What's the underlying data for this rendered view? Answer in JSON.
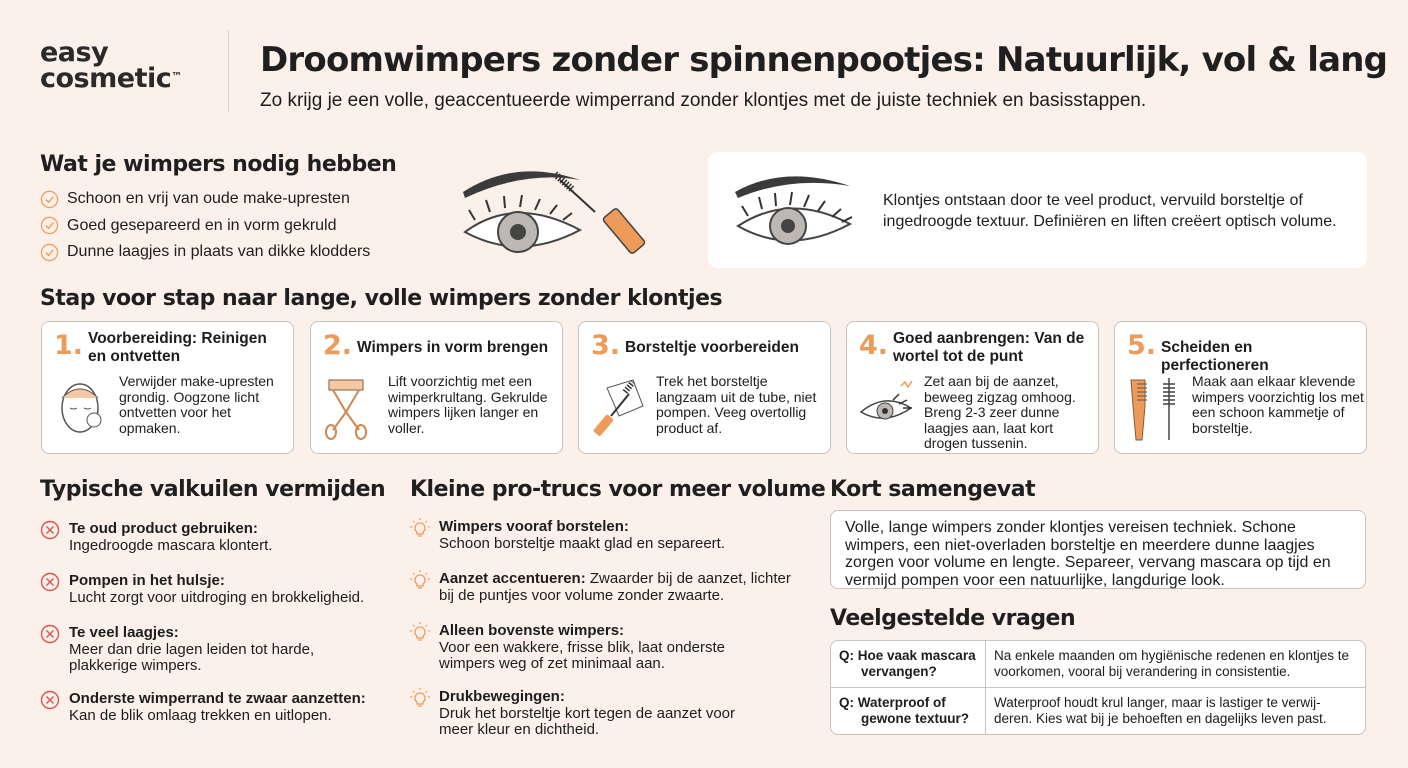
{
  "brand": {
    "line1": "easy",
    "line2": "cosmetic",
    "tm": "™"
  },
  "header": {
    "title": "Droomwimpers zonder spinnenpootjes: Natuurlijk, vol & lang",
    "subtitle": "Zo krijg je een volle, geaccentueerde wimperrand zonder klontjes met de juiste techniek en basisstappen."
  },
  "needs": {
    "title": "Wat je wimpers nodig hebben",
    "items": [
      "Schoon en vrij van oude make-upresten",
      "Goed gesepareerd en in vorm gekruld",
      "Dunne laagjes in plaats van dikke klodders"
    ]
  },
  "info": {
    "text": "Klontjes ontstaan door te veel product, vervuild borsteltje of ingedroogde textuur. Definiëren en liften creëert optisch volume."
  },
  "steps": {
    "title": "Stap voor stap naar lange, volle wimpers zonder klontjes",
    "items": [
      {
        "num": "1.",
        "title": "Voorbereiding: Reinigen en ontvetten",
        "text": "Verwijder make-upresten grondig. Oogzone licht ontvetten voor het opmaken.",
        "icon": "face-cotton-pad-icon"
      },
      {
        "num": "2.",
        "title": "Wimpers in vorm brengen",
        "text": "Lift voorzichtig met een wimperkrultang. Gekrulde wimpers lijken langer en voller.",
        "icon": "eyelash-curler-icon"
      },
      {
        "num": "3.",
        "title": "Borsteltje voorbereiden",
        "text": "Trek het borsteltje langzaam uit de tube, niet pompen. Veeg overtollig product af.",
        "icon": "mascara-tissue-icon"
      },
      {
        "num": "4.",
        "title": "Goed aanbrengen: Van de wortel tot de punt",
        "text": "Zet aan bij de aanzet, beweeg zigzag omhoog. Breng 2-3 zeer dunne laagjes aan, laat kort drogen tussenin.",
        "icon": "eye-zigzag-icon"
      },
      {
        "num": "5.",
        "title": "Scheiden en perfectioneren",
        "text": "Maak aan elkaar klevende wimpers voorzichtig los met een schoon kammetje of borsteltje.",
        "icon": "comb-spoolie-icon"
      }
    ]
  },
  "pitfalls": {
    "title": "Typische valkuilen vermijden",
    "items": [
      {
        "title": "Te oud product gebruiken:",
        "text": "Ingedroogde mascara klontert."
      },
      {
        "title": "Pompen in het hulsje:",
        "text": "Lucht zorgt voor uitdroging en brokkeligheid."
      },
      {
        "title": "Te veel laagjes:",
        "text": "Meer dan drie lagen leiden tot harde, plakkerige wimpers."
      },
      {
        "title": "Onderste wimperrand te zwaar aanzetten:",
        "text": "Kan de blik omlaag trekken en uitlopen."
      }
    ]
  },
  "tips": {
    "title": "Kleine pro-trucs voor meer volume",
    "items": [
      {
        "title": "Wimpers vooraf borstelen:",
        "text": "Schoon borsteltje maakt glad en separeert."
      },
      {
        "title": "Aanzet accentueren:",
        "text": "Zwaarder bij de aanzet, lichter bij de puntjes voor volume zonder zwaarte."
      },
      {
        "title": "Alleen bovenste wimpers:",
        "text": "Voor een wakkere, frisse blik, laat onderste wimpers weg of zet minimaal aan."
      },
      {
        "title": "Drukbewegingen:",
        "text": "Druk het borsteltje kort tegen de aanzet voor meer kleur en dichtheid."
      }
    ]
  },
  "summary": {
    "title": "Kort samengevat",
    "text": "Volle, lange wimpers zonder klontjes vereisen techniek. Schone wimpers, een niet-overladen borsteltje en meerdere dunne laagjes zorgen voor volume en lengte. Separeer, vervang mascara op tijd en vermijd pompen voor een natuurlijke, langdurige look."
  },
  "faq": {
    "title": "Veelgestelde vragen",
    "items": [
      {
        "q": "Q: Hoe vaak mascara vervangen?",
        "a": "Na enkele maanden om hygiënische redenen en klontjes te voorkomen, vooral bij verandering in consistentie."
      },
      {
        "q": "Q: Waterproof of gewone textuur?",
        "a": "Waterproof houdt krul langer, maar is lastiger te verwij-deren. Kies wat bij je behoeften en dagelijks leven past."
      }
    ]
  },
  "colors": {
    "background": "#fbf1ea",
    "accent": "#ee9a58",
    "pitfall": "#d9534f",
    "text": "#1d1d1d"
  }
}
